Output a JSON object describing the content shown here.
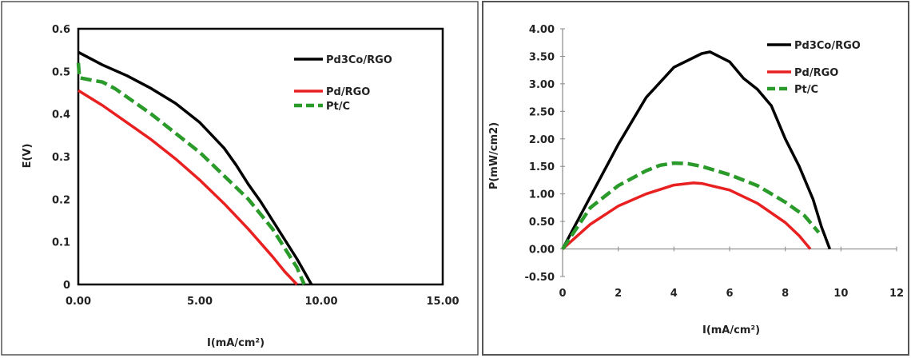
{
  "chart_data": [
    {
      "type": "line",
      "xlabel": "I(mA/cm²)",
      "ylabel": "E(V)",
      "xlim": [
        0,
        15
      ],
      "ylim": [
        0,
        0.6
      ],
      "x_ticks": [
        "0.00",
        "5.00",
        "10.00",
        "15.00"
      ],
      "y_ticks": [
        "0",
        "0.1",
        "0.2",
        "0.3",
        "0.4",
        "0.5",
        "0.6"
      ],
      "grid": false,
      "legend_position": "top-right",
      "series": [
        {
          "name": "Pd3Co/RGO",
          "color": "#000000",
          "x": [
            0,
            0.5,
            1,
            2,
            3,
            4,
            5,
            6,
            6.5,
            7,
            7.5,
            8,
            8.5,
            9,
            9.3,
            9.6
          ],
          "y": [
            0.545,
            0.53,
            0.515,
            0.49,
            0.46,
            0.425,
            0.38,
            0.32,
            0.28,
            0.235,
            0.195,
            0.15,
            0.105,
            0.06,
            0.03,
            0.0
          ]
        },
        {
          "name": "Pd/RGO",
          "color": "#e82020",
          "x": [
            0,
            1,
            2,
            3,
            4,
            5,
            6,
            7,
            8,
            8.5,
            9.0
          ],
          "y": [
            0.455,
            0.42,
            0.38,
            0.34,
            0.295,
            0.245,
            0.19,
            0.13,
            0.065,
            0.03,
            0.0
          ]
        },
        {
          "name": "Pt/C",
          "color": "#2a9a2a",
          "x": [
            0,
            0.05,
            0.5,
            1,
            1.5,
            2,
            3,
            4,
            5,
            6,
            7,
            8,
            8.5,
            9.0,
            9.3
          ],
          "y": [
            0.52,
            0.485,
            0.48,
            0.475,
            0.46,
            0.44,
            0.4,
            0.355,
            0.31,
            0.255,
            0.2,
            0.13,
            0.085,
            0.04,
            0.0
          ]
        }
      ]
    },
    {
      "type": "line",
      "xlabel": "I(mA/cm²)",
      "ylabel": "P(mW/cm2)",
      "xlim": [
        0,
        12
      ],
      "ylim": [
        -0.5,
        4.0
      ],
      "x_ticks": [
        "0",
        "2",
        "4",
        "6",
        "8",
        "10",
        "12"
      ],
      "y_ticks": [
        "-0.50",
        "0.00",
        "0.50",
        "1.00",
        "1.50",
        "2.00",
        "2.50",
        "3.00",
        "3.50",
        "4.00"
      ],
      "grid": false,
      "legend_position": "top-right",
      "series": [
        {
          "name": "Pd3Co/RGO",
          "color": "#000000",
          "x": [
            0,
            1,
            2,
            3,
            4,
            5,
            5.3,
            6,
            6.5,
            7,
            7.5,
            8,
            8.5,
            9,
            9.3,
            9.6
          ],
          "y": [
            0.0,
            0.95,
            1.9,
            2.75,
            3.3,
            3.55,
            3.58,
            3.4,
            3.1,
            2.9,
            2.6,
            2.0,
            1.5,
            0.9,
            0.4,
            0.0
          ]
        },
        {
          "name": "Pd/RGO",
          "color": "#e82020",
          "x": [
            0,
            1,
            2,
            3,
            4,
            4.7,
            5,
            6,
            7,
            8,
            8.5,
            8.9
          ],
          "y": [
            0.0,
            0.45,
            0.78,
            1.0,
            1.16,
            1.2,
            1.19,
            1.07,
            0.83,
            0.48,
            0.24,
            0.0
          ]
        },
        {
          "name": "Pt/C",
          "color": "#2a9a2a",
          "x": [
            0,
            1,
            2,
            3,
            3.5,
            4,
            4.5,
            5,
            6,
            7,
            8,
            8.7,
            9.2
          ],
          "y": [
            0.0,
            0.75,
            1.15,
            1.42,
            1.52,
            1.56,
            1.55,
            1.5,
            1.35,
            1.15,
            0.85,
            0.6,
            0.3
          ]
        }
      ]
    }
  ]
}
